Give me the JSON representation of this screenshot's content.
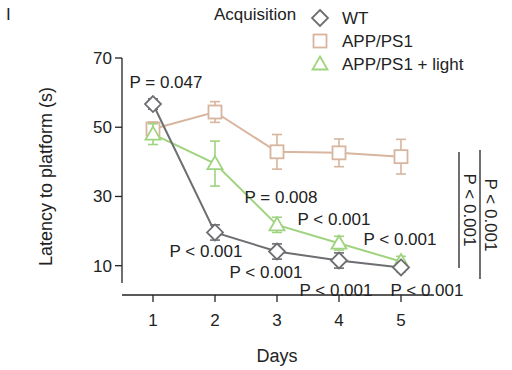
{
  "chart_data": {
    "type": "line",
    "panel_label": "I",
    "title": "Acquisition",
    "x_label": "Days",
    "y_label": "Latency to platform (s)",
    "x": [
      1,
      2,
      3,
      4,
      5
    ],
    "xlim": [
      0.5,
      5.5
    ],
    "xticks": [
      1,
      2,
      3,
      4,
      5
    ],
    "ylim": [
      5,
      70
    ],
    "yticks": [
      10,
      30,
      50,
      70
    ],
    "grid": false,
    "legend": "top-right",
    "series": [
      {
        "name": "WT",
        "color": "#6d6e71",
        "marker": "diamond",
        "values": [
          56.7,
          19.6,
          14.1,
          11.5,
          9.5
        ],
        "errors": [
          1.5,
          2.2,
          2.2,
          2.2,
          1.2
        ]
      },
      {
        "name": "APP/PS1",
        "color": "#d7b59e",
        "marker": "square",
        "values": [
          49.5,
          54.4,
          42.9,
          42.6,
          41.5
        ],
        "errors": [
          2,
          3,
          5,
          4,
          5
        ]
      },
      {
        "name": "APP/PS1 + light",
        "color": "#9fd37f",
        "marker": "triangle",
        "values": [
          48,
          39.5,
          21.8,
          16.5,
          11.2
        ],
        "errors": [
          3,
          6.5,
          2.2,
          2,
          1.5
        ]
      }
    ],
    "annotations": [
      "P = 0.047",
      "P < 0.001",
      "P = 0.008",
      "P < 0.001",
      "P < 0.001",
      "P < 0.001",
      "P < 0.001",
      "P < 0.001",
      "P < 0.001",
      "P < 0.001"
    ]
  }
}
